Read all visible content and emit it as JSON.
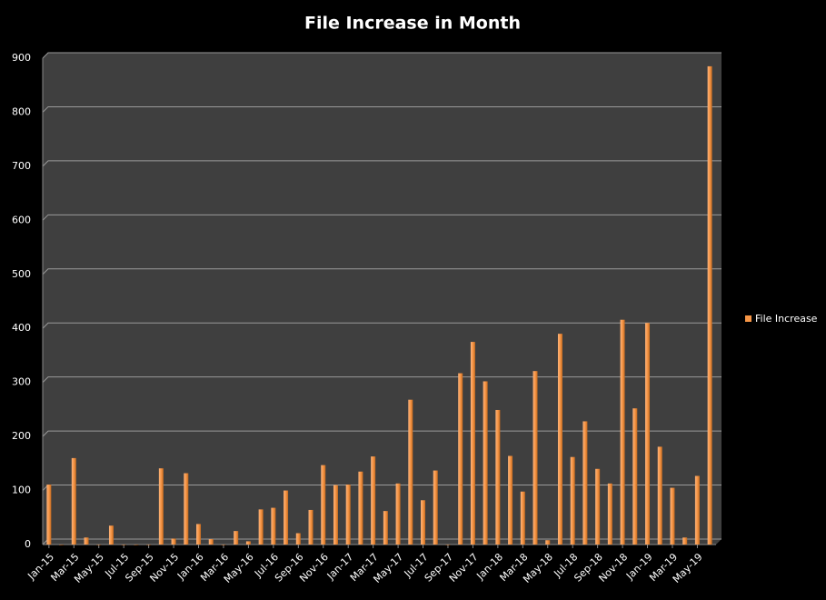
{
  "chart_data": {
    "type": "bar",
    "title": "File Increase in Month",
    "categories": [
      "Jan-15",
      null,
      "Mar-15",
      null,
      "May-15",
      null,
      "Jul-15",
      null,
      "Sep-15",
      null,
      "Nov-15",
      null,
      "Jan-16",
      null,
      "Mar-16",
      null,
      "May-16",
      null,
      "Jul-16",
      null,
      "Sep-16",
      null,
      "Nov-16",
      null,
      "Jan-17",
      null,
      "Mar-17",
      null,
      "May-17",
      null,
      "Jul-17",
      null,
      "Sep-17",
      null,
      "Nov-17",
      null,
      "Jan-18",
      null,
      "Mar-18",
      null,
      "May-18",
      null,
      "Jul-18",
      null,
      "Sep-18",
      null,
      "Nov-18",
      null,
      "Jan-19",
      null,
      "Mar-19",
      null,
      "May-19",
      null
    ],
    "series": [
      {
        "name": "File Increase",
        "color": "#f79646",
        "values": [
          111,
          0,
          160,
          13,
          0,
          35,
          0,
          0,
          0,
          141,
          11,
          132,
          38,
          10,
          0,
          25,
          6,
          65,
          68,
          100,
          21,
          64,
          147,
          110,
          111,
          135,
          163,
          62,
          113,
          268,
          82,
          137,
          0,
          317,
          375,
          302,
          249,
          164,
          98,
          321,
          8,
          390,
          162,
          228,
          140,
          113,
          416,
          252,
          410,
          181,
          105,
          13,
          127,
          885
        ]
      }
    ],
    "ylim": [
      0,
      900
    ],
    "yticks": [
      0,
      100,
      200,
      300,
      400,
      500,
      600,
      700,
      800,
      900
    ],
    "grid": true,
    "legend": "right"
  }
}
